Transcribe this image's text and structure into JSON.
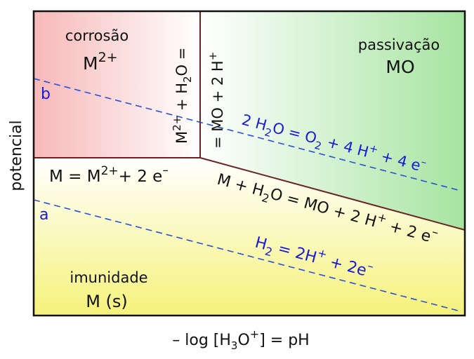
{
  "axes": {
    "x_label": {
      "pre": "– log [H",
      "sub": "3",
      "mid": "O",
      "sup": "+",
      "post": "]  =  pH"
    },
    "y_label": "potencial"
  },
  "regions": {
    "corrosion": {
      "title": "corrosão",
      "species": {
        "base": "M",
        "sup": "2+"
      },
      "color": "#f7b8b8"
    },
    "passivation": {
      "title": "passivação",
      "species": "MO",
      "color": "#a6e4a0"
    },
    "immunity": {
      "title": "imunidade",
      "species": "M (s)",
      "color": "#f5f27a"
    }
  },
  "reactions": {
    "corrosion_immunity": {
      "lhs": "M = M",
      "sup": "2+",
      "rhs": "+ 2 e",
      "sup2": "–"
    },
    "vertical_part1": {
      "a": "M",
      "sup1": "2+",
      "b": " + H",
      "sub": "2",
      "c": "O ="
    },
    "vertical_part2": {
      "a": "= MO  + 2 H",
      "sup": "+"
    },
    "passivation_boundary": {
      "a": "M + H",
      "sub": "2",
      "b": "O = MO + 2 H",
      "sup": "+",
      "c": " + 2 e",
      "sup2": "–"
    }
  },
  "water_lines": {
    "b": {
      "tag": "b",
      "a": "2 H",
      "sub": "2",
      "b": "O = O",
      "sub2": "2",
      "c": "  + 4 H",
      "sup": "+",
      "d": " + 4 e",
      "sup2": "–",
      "color": "#2a4fd6"
    },
    "a": {
      "tag": "a",
      "a": "H",
      "sub": "2",
      "b": " = 2H",
      "sup": "+",
      "c": " + 2e",
      "sup2": "–",
      "color": "#2a4fd6"
    }
  },
  "border_color": "#6b2222"
}
